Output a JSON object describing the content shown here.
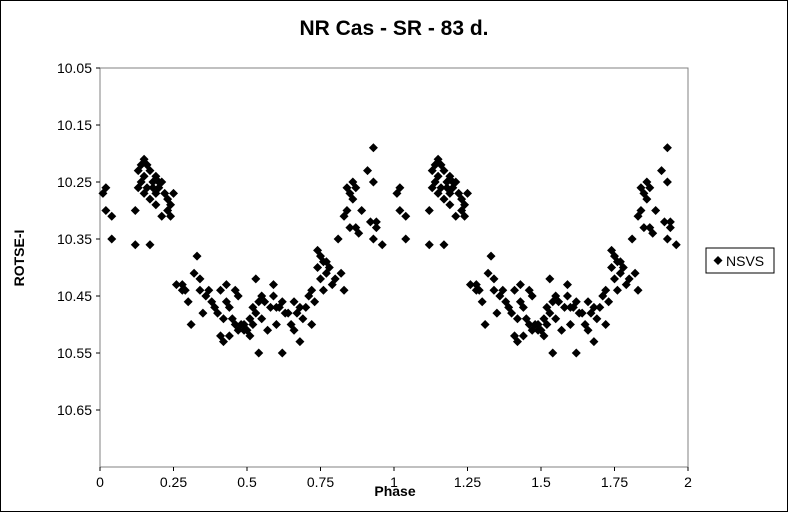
{
  "chart_data": {
    "type": "scatter",
    "title": "NR Cas - SR - 83 d.",
    "xlabel": "Phase",
    "ylabel": "ROTSE-I",
    "xlim": [
      0,
      2
    ],
    "ylim": [
      10.05,
      10.75
    ],
    "y_inverted": true,
    "x_ticks": [
      0,
      0.25,
      0.5,
      0.75,
      1,
      1.25,
      1.5,
      1.75,
      2
    ],
    "x_tick_labels": [
      "0",
      "0.25",
      "0.5",
      "0.75",
      "1",
      "1.25",
      "1.5",
      "1.75",
      "2"
    ],
    "y_ticks": [
      10.05,
      10.15,
      10.25,
      10.35,
      10.45,
      10.55,
      10.65
    ],
    "y_tick_labels": [
      "10.05",
      "10.15",
      "10.25",
      "10.35",
      "10.45",
      "10.55",
      "10.65"
    ],
    "grid": false,
    "legend_position": "right",
    "marker": "diamond",
    "marker_color": "#000000",
    "series": [
      {
        "name": "NSVS",
        "points": [
          [
            0.01,
            10.27
          ],
          [
            0.02,
            10.26
          ],
          [
            0.02,
            10.3
          ],
          [
            0.04,
            10.31
          ],
          [
            0.04,
            10.35
          ],
          [
            0.12,
            10.36
          ],
          [
            0.12,
            10.3
          ],
          [
            0.13,
            10.26
          ],
          [
            0.13,
            10.23
          ],
          [
            0.14,
            10.22
          ],
          [
            0.14,
            10.25
          ],
          [
            0.15,
            10.21
          ],
          [
            0.15,
            10.24
          ],
          [
            0.15,
            10.27
          ],
          [
            0.16,
            10.22
          ],
          [
            0.16,
            10.26
          ],
          [
            0.17,
            10.28
          ],
          [
            0.17,
            10.23
          ],
          [
            0.18,
            10.25
          ],
          [
            0.18,
            10.26
          ],
          [
            0.19,
            10.29
          ],
          [
            0.19,
            10.27
          ],
          [
            0.19,
            10.24
          ],
          [
            0.2,
            10.26
          ],
          [
            0.2,
            10.25
          ],
          [
            0.21,
            10.31
          ],
          [
            0.21,
            10.25
          ],
          [
            0.22,
            10.27
          ],
          [
            0.23,
            10.3
          ],
          [
            0.23,
            10.28
          ],
          [
            0.24,
            10.31
          ],
          [
            0.25,
            10.27
          ],
          [
            0.24,
            10.29
          ],
          [
            0.17,
            10.36
          ],
          [
            0.26,
            10.43
          ],
          [
            0.28,
            10.44
          ],
          [
            0.28,
            10.43
          ],
          [
            0.29,
            10.44
          ],
          [
            0.3,
            10.46
          ],
          [
            0.31,
            10.5
          ],
          [
            0.32,
            10.41
          ],
          [
            0.33,
            10.38
          ],
          [
            0.34,
            10.42
          ],
          [
            0.34,
            10.44
          ],
          [
            0.35,
            10.48
          ],
          [
            0.36,
            10.45
          ],
          [
            0.37,
            10.44
          ],
          [
            0.38,
            10.46
          ],
          [
            0.39,
            10.47
          ],
          [
            0.4,
            10.48
          ],
          [
            0.41,
            10.44
          ],
          [
            0.41,
            10.52
          ],
          [
            0.42,
            10.53
          ],
          [
            0.42,
            10.49
          ],
          [
            0.43,
            10.46
          ],
          [
            0.43,
            10.43
          ],
          [
            0.44,
            10.52
          ],
          [
            0.44,
            10.47
          ],
          [
            0.45,
            10.49
          ],
          [
            0.46,
            10.44
          ],
          [
            0.46,
            10.5
          ],
          [
            0.47,
            10.51
          ],
          [
            0.47,
            10.45
          ],
          [
            0.48,
            10.5
          ],
          [
            0.49,
            10.51
          ],
          [
            0.49,
            10.5
          ],
          [
            0.5,
            10.51
          ],
          [
            0.51,
            10.49
          ],
          [
            0.51,
            10.52
          ],
          [
            0.52,
            10.47
          ],
          [
            0.52,
            10.5
          ],
          [
            0.53,
            10.48
          ],
          [
            0.53,
            10.42
          ],
          [
            0.54,
            10.46
          ],
          [
            0.54,
            10.55
          ],
          [
            0.55,
            10.49
          ],
          [
            0.55,
            10.45
          ],
          [
            0.56,
            10.46
          ],
          [
            0.57,
            10.51
          ],
          [
            0.58,
            10.47
          ],
          [
            0.59,
            10.43
          ],
          [
            0.59,
            10.45
          ],
          [
            0.6,
            10.47
          ],
          [
            0.6,
            10.5
          ],
          [
            0.61,
            10.47
          ],
          [
            0.62,
            10.46
          ],
          [
            0.62,
            10.55
          ],
          [
            0.63,
            10.48
          ],
          [
            0.64,
            10.48
          ],
          [
            0.65,
            10.5
          ],
          [
            0.66,
            10.46
          ],
          [
            0.66,
            10.51
          ],
          [
            0.67,
            10.48
          ],
          [
            0.68,
            10.47
          ],
          [
            0.68,
            10.53
          ],
          [
            0.69,
            10.49
          ],
          [
            0.7,
            10.47
          ],
          [
            0.71,
            10.45
          ],
          [
            0.72,
            10.44
          ],
          [
            0.72,
            10.5
          ],
          [
            0.73,
            10.46
          ],
          [
            0.74,
            10.4
          ],
          [
            0.74,
            10.37
          ],
          [
            0.75,
            10.42
          ],
          [
            0.75,
            10.38
          ],
          [
            0.76,
            10.39
          ],
          [
            0.76,
            10.44
          ],
          [
            0.77,
            10.41
          ],
          [
            0.77,
            10.39
          ],
          [
            0.78,
            10.4
          ],
          [
            0.79,
            10.43
          ],
          [
            0.8,
            10.42
          ],
          [
            0.81,
            10.35
          ],
          [
            0.82,
            10.41
          ],
          [
            0.83,
            10.44
          ],
          [
            0.83,
            10.31
          ],
          [
            0.84,
            10.3
          ],
          [
            0.84,
            10.26
          ],
          [
            0.85,
            10.33
          ],
          [
            0.85,
            10.27
          ],
          [
            0.86,
            10.28
          ],
          [
            0.86,
            10.25
          ],
          [
            0.87,
            10.33
          ],
          [
            0.87,
            10.26
          ],
          [
            0.88,
            10.34
          ],
          [
            0.89,
            10.3
          ],
          [
            0.91,
            10.23
          ],
          [
            0.92,
            10.32
          ],
          [
            0.93,
            10.25
          ],
          [
            0.93,
            10.19
          ],
          [
            0.93,
            10.35
          ],
          [
            0.94,
            10.32
          ],
          [
            0.94,
            10.33
          ],
          [
            0.96,
            10.36
          ],
          [
            1.01,
            10.27
          ],
          [
            1.02,
            10.26
          ],
          [
            1.02,
            10.3
          ],
          [
            1.04,
            10.31
          ],
          [
            1.04,
            10.35
          ],
          [
            1.12,
            10.36
          ],
          [
            1.12,
            10.3
          ],
          [
            1.13,
            10.26
          ],
          [
            1.13,
            10.23
          ],
          [
            1.14,
            10.22
          ],
          [
            1.14,
            10.25
          ],
          [
            1.15,
            10.21
          ],
          [
            1.15,
            10.24
          ],
          [
            1.15,
            10.27
          ],
          [
            1.16,
            10.22
          ],
          [
            1.16,
            10.26
          ],
          [
            1.17,
            10.28
          ],
          [
            1.17,
            10.23
          ],
          [
            1.18,
            10.25
          ],
          [
            1.18,
            10.26
          ],
          [
            1.19,
            10.29
          ],
          [
            1.19,
            10.27
          ],
          [
            1.19,
            10.24
          ],
          [
            1.2,
            10.26
          ],
          [
            1.2,
            10.25
          ],
          [
            1.21,
            10.31
          ],
          [
            1.21,
            10.25
          ],
          [
            1.22,
            10.27
          ],
          [
            1.23,
            10.3
          ],
          [
            1.23,
            10.28
          ],
          [
            1.24,
            10.31
          ],
          [
            1.25,
            10.27
          ],
          [
            1.24,
            10.29
          ],
          [
            1.17,
            10.36
          ],
          [
            1.26,
            10.43
          ],
          [
            1.28,
            10.44
          ],
          [
            1.28,
            10.43
          ],
          [
            1.29,
            10.44
          ],
          [
            1.3,
            10.46
          ],
          [
            1.31,
            10.5
          ],
          [
            1.32,
            10.41
          ],
          [
            1.33,
            10.38
          ],
          [
            1.34,
            10.42
          ],
          [
            1.34,
            10.44
          ],
          [
            1.35,
            10.48
          ],
          [
            1.36,
            10.45
          ],
          [
            1.37,
            10.44
          ],
          [
            1.38,
            10.46
          ],
          [
            1.39,
            10.47
          ],
          [
            1.4,
            10.48
          ],
          [
            1.41,
            10.44
          ],
          [
            1.41,
            10.52
          ],
          [
            1.42,
            10.53
          ],
          [
            1.42,
            10.49
          ],
          [
            1.43,
            10.46
          ],
          [
            1.43,
            10.43
          ],
          [
            1.44,
            10.52
          ],
          [
            1.44,
            10.47
          ],
          [
            1.45,
            10.49
          ],
          [
            1.46,
            10.44
          ],
          [
            1.46,
            10.5
          ],
          [
            1.47,
            10.51
          ],
          [
            1.47,
            10.45
          ],
          [
            1.48,
            10.5
          ],
          [
            1.49,
            10.51
          ],
          [
            1.49,
            10.5
          ],
          [
            1.5,
            10.51
          ],
          [
            1.51,
            10.49
          ],
          [
            1.51,
            10.52
          ],
          [
            1.52,
            10.47
          ],
          [
            1.52,
            10.5
          ],
          [
            1.53,
            10.48
          ],
          [
            1.53,
            10.42
          ],
          [
            1.54,
            10.46
          ],
          [
            1.54,
            10.55
          ],
          [
            1.55,
            10.49
          ],
          [
            1.55,
            10.45
          ],
          [
            1.56,
            10.46
          ],
          [
            1.57,
            10.51
          ],
          [
            1.58,
            10.47
          ],
          [
            1.59,
            10.43
          ],
          [
            1.59,
            10.45
          ],
          [
            1.6,
            10.47
          ],
          [
            1.6,
            10.5
          ],
          [
            1.61,
            10.47
          ],
          [
            1.62,
            10.46
          ],
          [
            1.62,
            10.55
          ],
          [
            1.63,
            10.48
          ],
          [
            1.64,
            10.48
          ],
          [
            1.65,
            10.5
          ],
          [
            1.66,
            10.46
          ],
          [
            1.66,
            10.51
          ],
          [
            1.67,
            10.48
          ],
          [
            1.68,
            10.47
          ],
          [
            1.68,
            10.53
          ],
          [
            1.69,
            10.49
          ],
          [
            1.7,
            10.47
          ],
          [
            1.71,
            10.45
          ],
          [
            1.72,
            10.44
          ],
          [
            1.72,
            10.5
          ],
          [
            1.73,
            10.46
          ],
          [
            1.74,
            10.4
          ],
          [
            1.74,
            10.37
          ],
          [
            1.75,
            10.42
          ],
          [
            1.75,
            10.38
          ],
          [
            1.76,
            10.39
          ],
          [
            1.76,
            10.44
          ],
          [
            1.77,
            10.41
          ],
          [
            1.77,
            10.39
          ],
          [
            1.78,
            10.4
          ],
          [
            1.79,
            10.43
          ],
          [
            1.8,
            10.42
          ],
          [
            1.81,
            10.35
          ],
          [
            1.82,
            10.41
          ],
          [
            1.83,
            10.44
          ],
          [
            1.83,
            10.31
          ],
          [
            1.84,
            10.3
          ],
          [
            1.84,
            10.26
          ],
          [
            1.85,
            10.33
          ],
          [
            1.85,
            10.27
          ],
          [
            1.86,
            10.28
          ],
          [
            1.86,
            10.25
          ],
          [
            1.87,
            10.33
          ],
          [
            1.87,
            10.26
          ],
          [
            1.88,
            10.34
          ],
          [
            1.89,
            10.3
          ],
          [
            1.91,
            10.23
          ],
          [
            1.92,
            10.32
          ],
          [
            1.93,
            10.25
          ],
          [
            1.93,
            10.19
          ],
          [
            1.93,
            10.35
          ],
          [
            1.94,
            10.32
          ],
          [
            1.94,
            10.33
          ],
          [
            1.96,
            10.36
          ]
        ]
      }
    ]
  }
}
